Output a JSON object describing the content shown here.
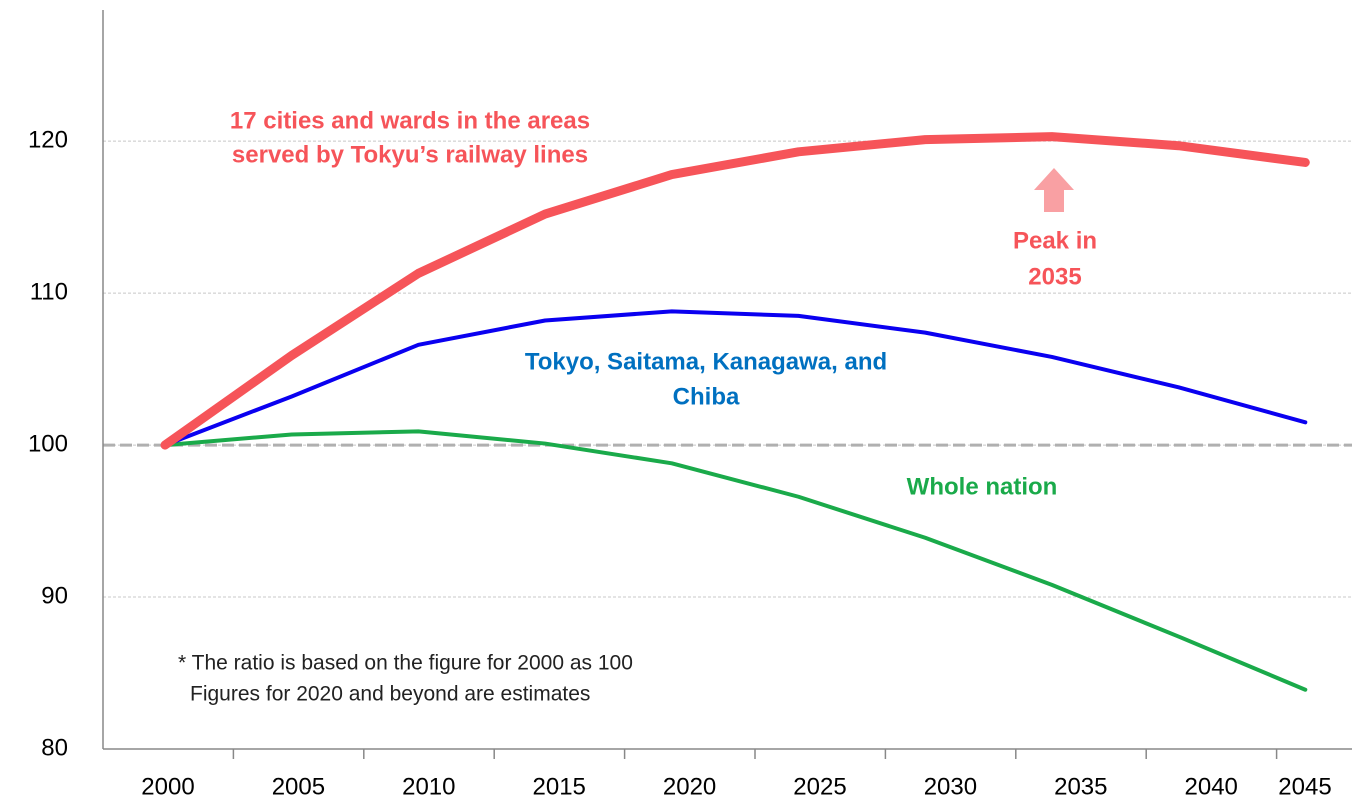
{
  "chart_data": {
    "type": "line",
    "categories": [
      "2000",
      "2005",
      "2010",
      "2015",
      "2020",
      "2025",
      "2030",
      "2035",
      "2040",
      "2045"
    ],
    "series": [
      {
        "name": "17 cities and wards in the areas served by Tokyu’s railway lines",
        "color": "#f65459",
        "width": 9,
        "values": [
          100,
          105.9,
          111.3,
          115.2,
          117.8,
          119.3,
          120.1,
          120.3,
          119.7,
          118.6
        ]
      },
      {
        "name": "Tokyo, Saitama, Kanagawa, and Chiba",
        "color": "#0a00f0",
        "width": 4,
        "values": [
          100,
          103.2,
          106.6,
          108.2,
          108.8,
          108.5,
          107.4,
          105.8,
          103.8,
          101.5
        ]
      },
      {
        "name": "Whole nation",
        "color": "#1aaa4a",
        "width": 4,
        "values": [
          100,
          100.7,
          100.9,
          100.1,
          98.8,
          96.6,
          93.9,
          90.8,
          87.4,
          83.9
        ]
      }
    ],
    "series_labels": [
      [
        "17 cities and wards in the areas",
        "served by Tokyu’s railway lines"
      ],
      [
        "Tokyo, Saitama, Kanagawa, and",
        "Chiba"
      ],
      [
        "Whole nation"
      ]
    ],
    "label_colors": [
      "#f65459",
      "#0070c0",
      "#1aaa4a"
    ],
    "annotation": [
      "Peak in",
      "2035"
    ],
    "footnote": [
      "* The ratio is based on the figure for 2000 as 100",
      "Figures for 2020 and beyond are estimates"
    ],
    "reference_line": 100,
    "ylim": [
      80,
      128.5
    ],
    "yticks": [
      80,
      90,
      100,
      110,
      120
    ],
    "grid": true
  }
}
